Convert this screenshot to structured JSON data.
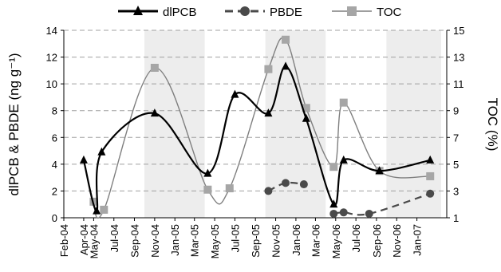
{
  "chart_data": {
    "type": "line",
    "title": "",
    "xlabel": "",
    "ylabel": "dlPCB & PBDE (ng g⁻¹)",
    "y2label": "TOC (%)",
    "ylim": [
      0,
      14
    ],
    "y2lim": [
      1,
      15
    ],
    "y_ticks": [
      "0",
      "2",
      "4",
      "6",
      "8",
      "10",
      "12",
      "14"
    ],
    "y2_ticks": [
      "1",
      "3",
      "5",
      "7",
      "9",
      "11",
      "13",
      "15"
    ],
    "x_ticks": [
      "Feb-04",
      "Apr-04",
      "May-04",
      "Jul-04",
      "Sep-04",
      "Nov-04",
      "Jan-05",
      "Mar-05",
      "May-05",
      "Jul-05",
      "Sep-05",
      "Nov-05",
      "Jan-06",
      "Mar-06",
      "May-06",
      "Jul-06",
      "Sep-06",
      "Nov-06",
      "Jan-07"
    ],
    "grid": "horizontal dashed",
    "shaded_bands": [
      [
        "2004-10-01",
        "2005-04-01"
      ],
      [
        "2005-10-01",
        "2006-04-01"
      ],
      [
        "2006-10-01",
        "2007-03-15"
      ]
    ],
    "legend_position": "top",
    "colors": {
      "dlPCB": "#000000",
      "PBDE": "#4a4a4a",
      "TOC": "#7f7f7f",
      "TOC_marker": "#a6a6a6",
      "band": "#ededed",
      "grid": "#a0a0a0"
    },
    "series": [
      {
        "name": "dlPCB",
        "axis": "left",
        "marker": "triangle",
        "line": "solid",
        "points": [
          {
            "x": "2004-04-01",
            "y": 4.3
          },
          {
            "x": "2004-05-10",
            "y": 0.5
          },
          {
            "x": "2004-05-25",
            "y": 4.9
          },
          {
            "x": "2004-11-01",
            "y": 7.8
          },
          {
            "x": "2005-04-10",
            "y": 3.3
          },
          {
            "x": "2005-07-01",
            "y": 9.2
          },
          {
            "x": "2005-10-10",
            "y": 7.8
          },
          {
            "x": "2005-12-01",
            "y": 11.3
          },
          {
            "x": "2006-02-01",
            "y": 7.4
          },
          {
            "x": "2006-04-25",
            "y": 1.0
          },
          {
            "x": "2006-05-25",
            "y": 4.3
          },
          {
            "x": "2006-09-10",
            "y": 3.5
          },
          {
            "x": "2007-02-10",
            "y": 4.3
          }
        ]
      },
      {
        "name": "PBDE",
        "axis": "left",
        "marker": "circle",
        "line": "dashed",
        "points": [
          {
            "x": "2005-10-10",
            "y": 2.0
          },
          {
            "x": "2005-12-01",
            "y": 2.6
          },
          {
            "x": "2006-01-25",
            "y": 2.5
          },
          {
            "x": "2006-04-25",
            "y": 0.3
          },
          {
            "x": "2006-05-25",
            "y": 0.4
          },
          {
            "x": "2006-08-10",
            "y": 0.3
          },
          {
            "x": "2007-02-10",
            "y": 1.8
          }
        ]
      },
      {
        "name": "TOC",
        "axis": "right",
        "marker": "square",
        "line": "solid",
        "points": [
          {
            "x": "2004-05-01",
            "y": 2.2
          },
          {
            "x": "2004-06-01",
            "y": 1.6
          },
          {
            "x": "2004-11-01",
            "y": 12.2
          },
          {
            "x": "2005-04-10",
            "y": 3.1
          },
          {
            "x": "2005-06-15",
            "y": 3.2
          },
          {
            "x": "2005-10-10",
            "y": 12.1
          },
          {
            "x": "2005-12-01",
            "y": 14.3
          },
          {
            "x": "2006-02-01",
            "y": 9.2
          },
          {
            "x": "2006-04-25",
            "y": 4.8
          },
          {
            "x": "2006-05-25",
            "y": 9.6
          },
          {
            "x": "2006-09-10",
            "y": 4.5
          },
          {
            "x": "2007-02-10",
            "y": 4.1
          }
        ]
      }
    ]
  }
}
